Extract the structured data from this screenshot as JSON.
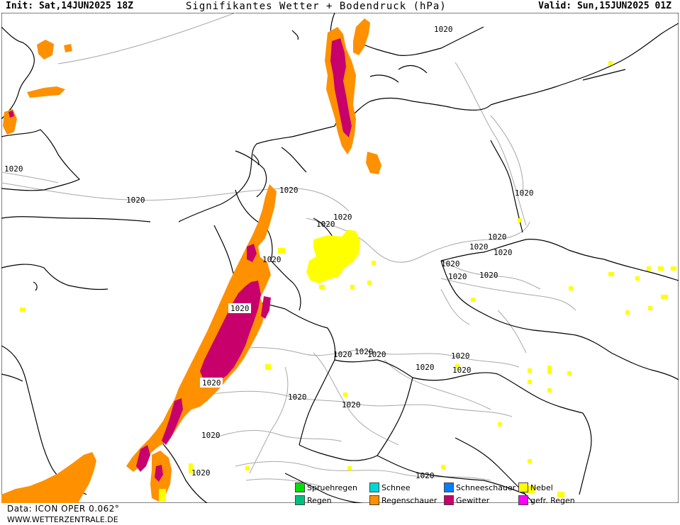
{
  "header": {
    "init": "Init: Sat,14JUN2025 18Z",
    "title": "Signifikantes Wetter + Bodendruck (hPa)",
    "valid": "Valid: Sun,15JUN2025 01Z"
  },
  "isobar_labels": [
    "1020",
    "1020",
    "1020",
    "1020",
    "1020",
    "1020",
    "1020",
    "1020",
    "1020",
    "1020",
    "1020",
    "1020",
    "1020",
    "1020",
    "1020",
    "1020",
    "1020",
    "1020",
    "1020",
    "1020",
    "1020",
    "1020",
    "1020",
    "1020",
    "1020",
    "1020",
    "1020"
  ],
  "legend": {
    "items": [
      {
        "label": "Spruehregen",
        "color": "#00e000"
      },
      {
        "label": "Regen",
        "color": "#00c080"
      },
      {
        "label": "Schnee",
        "color": "#00d8d8"
      },
      {
        "label": "Regenschauer",
        "color": "#ff9000"
      },
      {
        "label": "Schneeschauer",
        "color": "#0080ff"
      },
      {
        "label": "Gewitter",
        "color": "#c8006c"
      },
      {
        "label": "Nebel",
        "color": "#ffff00"
      },
      {
        "label": "gefr. Regen",
        "color": "#ff00ff"
      }
    ]
  },
  "footer": {
    "data_source": "Data: ICON OPER 0.062°",
    "website": "WWW.WETTERZENTRALE.DE"
  },
  "colors": {
    "coastline": "#000000",
    "borders": "#000000",
    "isobars": "#aaaaaa",
    "showers": "#ff9000",
    "thunderstorm": "#c8006c",
    "fog": "#ffff00"
  }
}
